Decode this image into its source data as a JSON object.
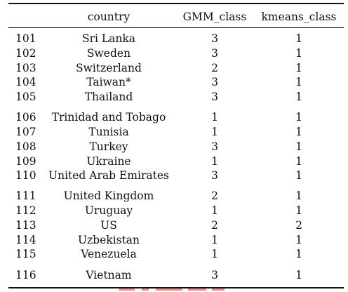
{
  "table": {
    "headers": {
      "index": "",
      "country": "country",
      "gmm": "GMM_class",
      "kmeans": "kmeans_class"
    },
    "rows": [
      {
        "index": "101",
        "country": "Sri Lanka",
        "gmm": "3",
        "kmeans": "1"
      },
      {
        "index": "102",
        "country": "Sweden",
        "gmm": "3",
        "kmeans": "1"
      },
      {
        "index": "103",
        "country": "Switzerland",
        "gmm": "2",
        "kmeans": "1"
      },
      {
        "index": "104",
        "country": "Taiwan*",
        "gmm": "3",
        "kmeans": "1"
      },
      {
        "index": "105",
        "country": "Thailand",
        "gmm": "3",
        "kmeans": "1"
      },
      {
        "index": "106",
        "country": "Trinidad and Tobago",
        "gmm": "1",
        "kmeans": "1"
      },
      {
        "index": "107",
        "country": "Tunisia",
        "gmm": "1",
        "kmeans": "1"
      },
      {
        "index": "108",
        "country": "Turkey",
        "gmm": "3",
        "kmeans": "1"
      },
      {
        "index": "109",
        "country": "Ukraine",
        "gmm": "1",
        "kmeans": "1"
      },
      {
        "index": "110",
        "country": "United Arab Emirates",
        "gmm": "3",
        "kmeans": "1"
      },
      {
        "index": "111",
        "country": "United Kingdom",
        "gmm": "2",
        "kmeans": "1"
      },
      {
        "index": "112",
        "country": "Uruguay",
        "gmm": "1",
        "kmeans": "1"
      },
      {
        "index": "113",
        "country": "US",
        "gmm": "2",
        "kmeans": "2"
      },
      {
        "index": "114",
        "country": "Uzbekistan",
        "gmm": "1",
        "kmeans": "1"
      },
      {
        "index": "115",
        "country": "Venezuela",
        "gmm": "1",
        "kmeans": "1"
      },
      {
        "index": "116",
        "country": "Vietnam",
        "gmm": "3",
        "kmeans": "1"
      }
    ]
  }
}
